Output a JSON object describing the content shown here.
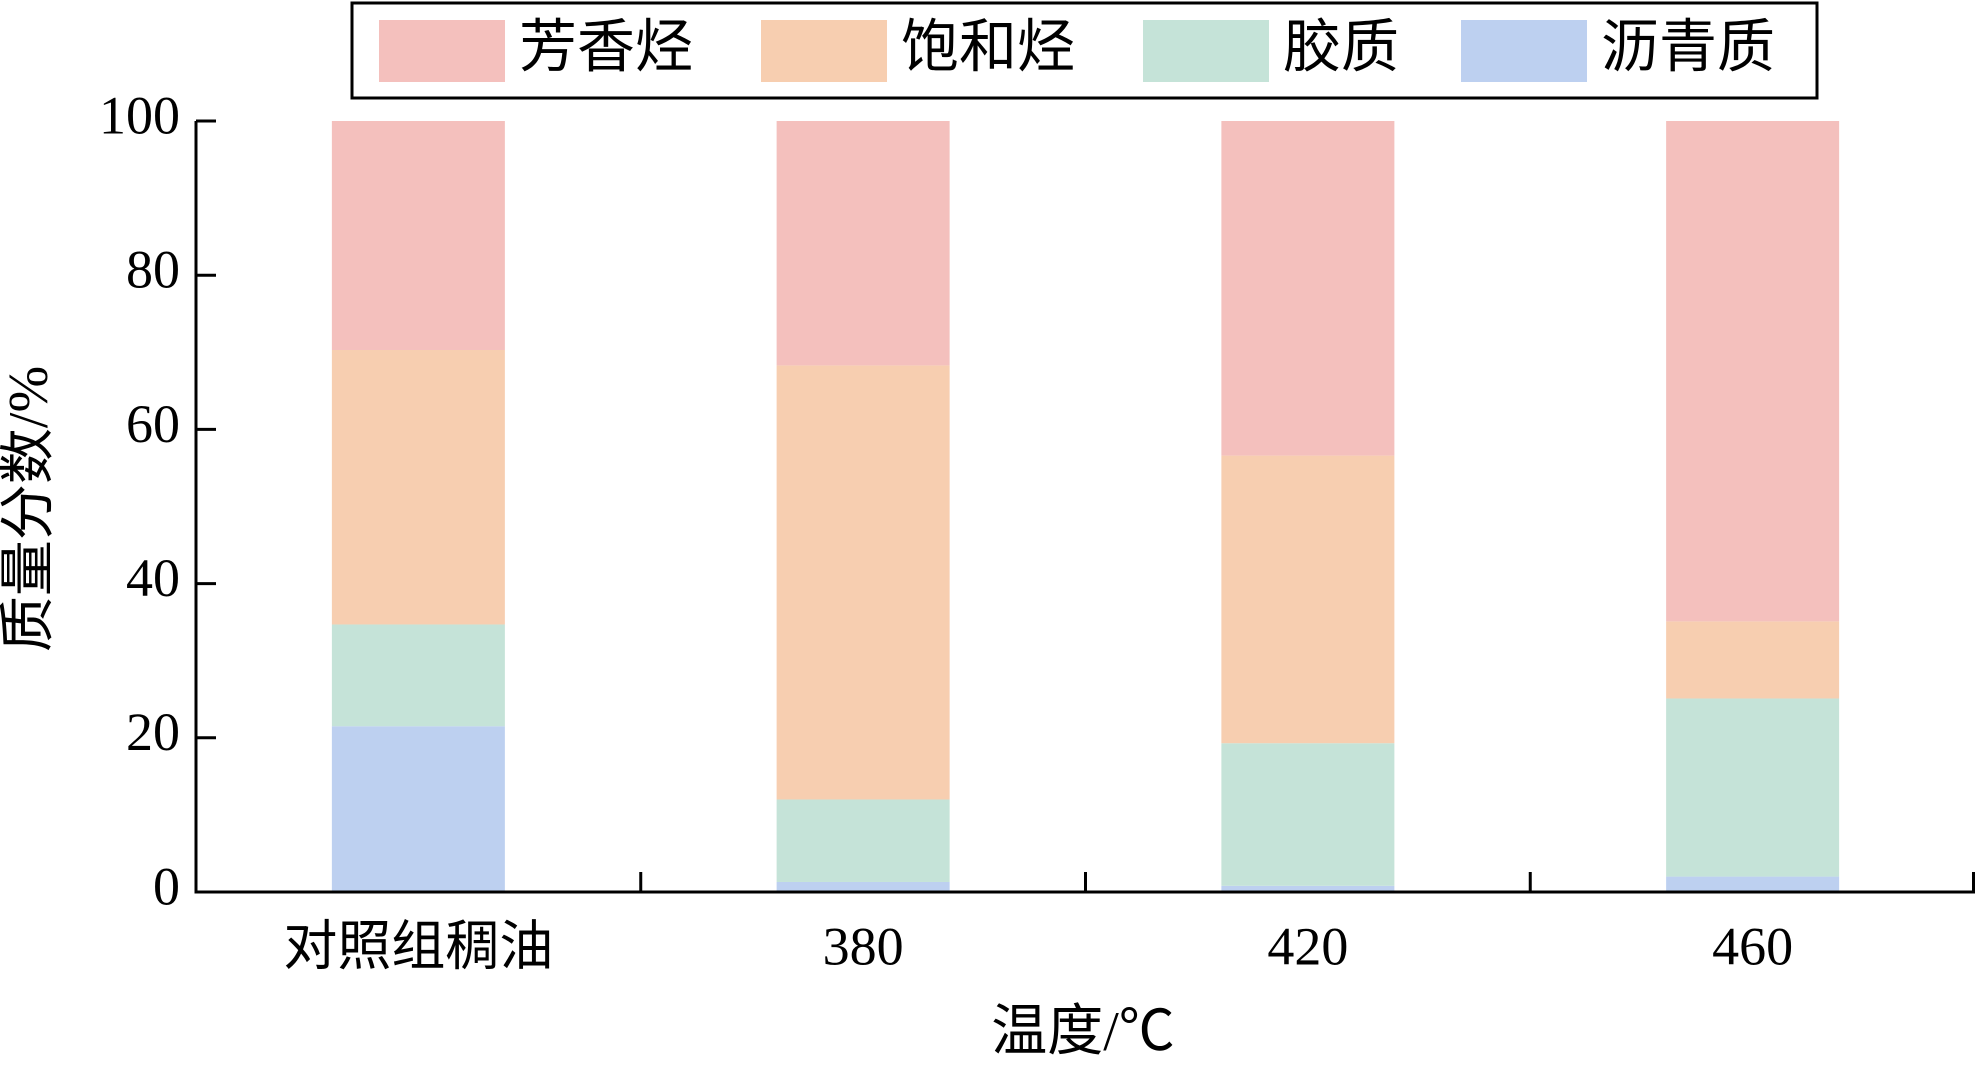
{
  "chart_data": {
    "type": "stacked_bar",
    "xlabel": "温度/℃",
    "ylabel": "质量分数/%",
    "categories": [
      "对照组稠油",
      "380",
      "420",
      "460"
    ],
    "series": [
      {
        "name": "芳香烃",
        "color": "#f4c0bd",
        "values": [
          29.7,
          31.7,
          43.4,
          64.9
        ]
      },
      {
        "name": "饱和烃",
        "color": "#f7ceb0",
        "values": [
          35.6,
          56.3,
          37.3,
          10.0
        ]
      },
      {
        "name": "胶质",
        "color": "#c5e3d8",
        "values": [
          13.2,
          10.7,
          18.5,
          23.1
        ]
      },
      {
        "name": "沥青质",
        "color": "#bdd0f0",
        "values": [
          21.5,
          1.3,
          0.8,
          2.0
        ]
      }
    ],
    "ylim": [
      0,
      100
    ],
    "yticks": [
      0,
      20,
      40,
      60,
      80,
      100
    ],
    "legend": "top"
  }
}
